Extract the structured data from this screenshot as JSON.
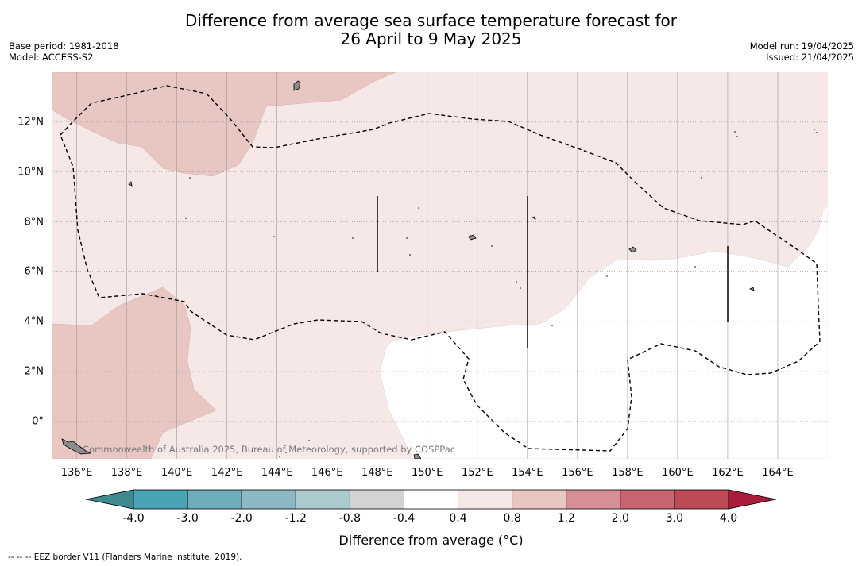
{
  "header": {
    "title_line1": "Difference from average sea surface temperature forecast for",
    "title_line2": "26 April to 9 May 2025",
    "base_period": "Base period: 1981-2018",
    "model": "Model: ACCESS-S2",
    "model_run": "Model run: 19/04/2025",
    "issued": "Issued: 21/04/2025"
  },
  "map": {
    "lon_range": [
      135,
      166
    ],
    "lat_range": [
      -1.5,
      14
    ],
    "lon_ticks": [
      136,
      138,
      140,
      142,
      144,
      146,
      148,
      150,
      152,
      154,
      156,
      158,
      160,
      162,
      164
    ],
    "lon_tick_labels": [
      "136°E",
      "138°E",
      "140°E",
      "142°E",
      "144°E",
      "146°E",
      "148°E",
      "150°E",
      "152°E",
      "154°E",
      "156°E",
      "158°E",
      "160°E",
      "162°E",
      "164°E"
    ],
    "lat_ticks": [
      0,
      2,
      4,
      6,
      8,
      10,
      12
    ],
    "lat_tick_labels": [
      "0°",
      "2°N",
      "4°N",
      "6°N",
      "8°N",
      "10°N",
      "12°N"
    ],
    "credit": "Commonwealth of Australia 2025, Bureau of Meteorology, supported by COSPPac",
    "colors": {
      "band_0_8_to_1_2": "#e8c6c1",
      "band_0_4_to_0_8": "#f5e8e6",
      "band_neg0_4_to_0_4": "#ffffff"
    }
  },
  "colorbar": {
    "title": "Difference from average (°C)",
    "tick_labels": [
      "-4.0",
      "-3.0",
      "-2.0",
      "-1.2",
      "-0.8",
      "-0.4",
      "0.4",
      "0.8",
      "1.2",
      "2.0",
      "3.0",
      "4.0"
    ],
    "colors": [
      "#4aa3b4",
      "#6cacbb",
      "#8bb8c2",
      "#aacacd",
      "#d3d3d3",
      "#ffffff",
      "#f5e8e6",
      "#e8c6c1",
      "#d78f95",
      "#c96570",
      "#be4a58"
    ],
    "extend_low_color": "#3f8a8e",
    "extend_high_color": "#aa1d3a"
  },
  "footnote": "--  --  -- EEZ border V11 (Flanders Marine Institute, 2019)."
}
